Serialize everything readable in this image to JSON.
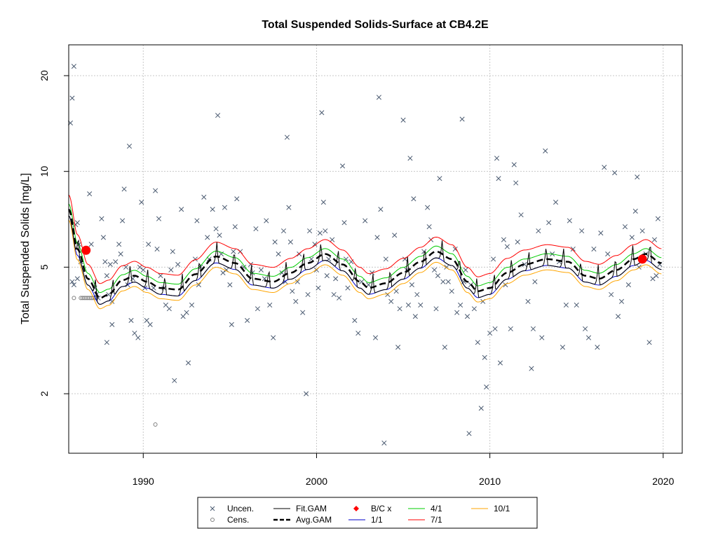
{
  "chart_data": {
    "type": "scatter",
    "title": "Total Suspended Solids-Surface at CB4.2E",
    "xlabel": "",
    "ylabel": "Total Suspended Solids [mg/L]",
    "xlim": [
      1985.7,
      2021.1
    ],
    "ylim": [
      1.3,
      25
    ],
    "y_scale": "log",
    "x_ticks": [
      1990,
      2000,
      2010,
      2020
    ],
    "y_ticks": [
      2,
      5,
      10,
      20
    ],
    "grid": true,
    "legend_position": "bottom",
    "legend": [
      {
        "label": "Uncen.",
        "kind": "x-marker",
        "color": "#4a5a70"
      },
      {
        "label": "Cens.",
        "kind": "circle-marker",
        "color": "#808080"
      },
      {
        "label": "Fit.GAM",
        "kind": "line",
        "color": "#000000"
      },
      {
        "label": "Avg.GAM",
        "kind": "dashed-line",
        "color": "#000000"
      },
      {
        "label": "B/C x",
        "kind": "diamond-marker",
        "color": "#ff0000"
      },
      {
        "label": "1/1",
        "kind": "line",
        "color": "#0000cc"
      },
      {
        "label": "4/1",
        "kind": "line",
        "color": "#00cc00"
      },
      {
        "label": "7/1",
        "kind": "line",
        "color": "#ff0000"
      },
      {
        "label": "10/1",
        "kind": "line",
        "color": "#ffa500"
      }
    ],
    "avg_gam_knots": {
      "x": [
        1985.7,
        1986.2,
        1986.8,
        1987.5,
        1988.0,
        1988.8,
        1989.5,
        1990.2,
        1991.0,
        1992.0,
        1993.0,
        1994.2,
        1995.3,
        1996.3,
        1997.5,
        1998.5,
        1999.5,
        2000.5,
        2001.5,
        2002.5,
        2003.0,
        2004.0,
        2005.0,
        2006.0,
        2006.9,
        2007.8,
        2008.7,
        2009.3,
        2010.0,
        2011.0,
        2012.0,
        2013.3,
        2014.5,
        2015.5,
        2016.3,
        2017.3,
        2018.3,
        2019.0,
        2019.9
      ],
      "y": [
        7.6,
        5.7,
        4.6,
        4.0,
        4.1,
        4.55,
        4.7,
        4.5,
        4.3,
        4.25,
        4.75,
        5.4,
        5.15,
        4.6,
        4.5,
        4.8,
        5.15,
        5.5,
        5.1,
        4.5,
        4.3,
        4.45,
        4.8,
        5.2,
        5.6,
        5.3,
        4.5,
        4.2,
        4.3,
        4.8,
        5.1,
        5.3,
        5.2,
        4.7,
        4.6,
        4.9,
        5.3,
        5.5,
        5.15
      ]
    },
    "seasonal_offsets": {
      "1/1": 0.955,
      "4/1": 1.04,
      "7/1": 1.11,
      "10/1": 0.925
    },
    "bc_points": [
      {
        "x": 1986.7,
        "y": 5.65
      },
      {
        "x": 2018.8,
        "y": 5.3
      }
    ],
    "uncensored": [
      [
        1986.0,
        21.4
      ],
      [
        1985.8,
        14.2
      ],
      [
        1985.9,
        17.0
      ],
      [
        1986.1,
        6.8
      ],
      [
        1986.2,
        6.9
      ],
      [
        1986.3,
        5.9
      ],
      [
        1986.4,
        5.2
      ],
      [
        1986.2,
        4.6
      ],
      [
        1985.9,
        4.5
      ],
      [
        1986.0,
        4.4
      ],
      [
        1986.9,
        8.5
      ],
      [
        1987.0,
        5.9
      ],
      [
        1987.2,
        4.3
      ],
      [
        1987.3,
        4.1
      ],
      [
        1987.4,
        4.0
      ],
      [
        1987.6,
        7.1
      ],
      [
        1987.7,
        6.2
      ],
      [
        1987.8,
        5.2
      ],
      [
        1987.9,
        4.7
      ],
      [
        1988.0,
        4.1
      ],
      [
        1988.1,
        5.1
      ],
      [
        1988.2,
        3.9
      ],
      [
        1987.9,
        2.9
      ],
      [
        1988.2,
        3.3
      ],
      [
        1988.4,
        5.2
      ],
      [
        1988.6,
        5.9
      ],
      [
        1988.7,
        5.5
      ],
      [
        1988.8,
        7.0
      ],
      [
        1988.9,
        8.8
      ],
      [
        1989.0,
        5.0
      ],
      [
        1989.1,
        4.4
      ],
      [
        1989.2,
        12.0
      ],
      [
        1989.3,
        3.4
      ],
      [
        1989.4,
        4.6
      ],
      [
        1989.5,
        3.1
      ],
      [
        1989.7,
        3.0
      ],
      [
        1989.8,
        5.0
      ],
      [
        1989.9,
        8.0
      ],
      [
        1990.0,
        4.9
      ],
      [
        1990.1,
        4.3
      ],
      [
        1990.2,
        3.4
      ],
      [
        1990.3,
        5.9
      ],
      [
        1990.4,
        3.3
      ],
      [
        1990.6,
        4.3
      ],
      [
        1990.7,
        8.7
      ],
      [
        1990.8,
        5.7
      ],
      [
        1990.9,
        7.1
      ],
      [
        1991.0,
        4.7
      ],
      [
        1991.2,
        4.3
      ],
      [
        1991.3,
        3.8
      ],
      [
        1991.5,
        3.7
      ],
      [
        1991.6,
        4.9
      ],
      [
        1991.7,
        5.6
      ],
      [
        1991.8,
        2.2
      ],
      [
        1992.0,
        5.1
      ],
      [
        1992.2,
        7.6
      ],
      [
        1992.3,
        3.5
      ],
      [
        1992.5,
        3.6
      ],
      [
        1992.6,
        2.5
      ],
      [
        1992.8,
        3.8
      ],
      [
        1993.0,
        5.3
      ],
      [
        1993.1,
        7.0
      ],
      [
        1993.2,
        4.4
      ],
      [
        1993.3,
        5.0
      ],
      [
        1993.5,
        8.3
      ],
      [
        1993.7,
        6.2
      ],
      [
        1993.8,
        5.3
      ],
      [
        1994.0,
        7.6
      ],
      [
        1994.2,
        6.6
      ],
      [
        1994.3,
        15.0
      ],
      [
        1994.4,
        6.3
      ],
      [
        1994.5,
        5.5
      ],
      [
        1994.6,
        4.8
      ],
      [
        1994.7,
        7.7
      ],
      [
        1994.8,
        4.9
      ],
      [
        1995.0,
        4.4
      ],
      [
        1995.1,
        3.3
      ],
      [
        1995.2,
        5.6
      ],
      [
        1995.3,
        6.7
      ],
      [
        1995.4,
        8.2
      ],
      [
        1995.6,
        5.6
      ],
      [
        1995.8,
        5.0
      ],
      [
        1996.0,
        3.4
      ],
      [
        1996.2,
        5.1
      ],
      [
        1996.3,
        4.8
      ],
      [
        1996.5,
        6.6
      ],
      [
        1996.6,
        3.7
      ],
      [
        1996.8,
        4.9
      ],
      [
        1997.0,
        4.6
      ],
      [
        1997.1,
        7.0
      ],
      [
        1997.3,
        3.8
      ],
      [
        1997.5,
        3.0
      ],
      [
        1997.6,
        6.0
      ],
      [
        1997.8,
        5.5
      ],
      [
        1998.0,
        4.8
      ],
      [
        1998.1,
        6.5
      ],
      [
        1998.2,
        4.5
      ],
      [
        1998.3,
        12.8
      ],
      [
        1998.4,
        7.7
      ],
      [
        1998.5,
        6.0
      ],
      [
        1998.6,
        4.2
      ],
      [
        1998.8,
        3.9
      ],
      [
        1998.9,
        4.5
      ],
      [
        1999.0,
        5.5
      ],
      [
        1999.2,
        3.6
      ],
      [
        1999.4,
        2.0
      ],
      [
        1999.5,
        4.1
      ],
      [
        1999.6,
        6.5
      ],
      [
        1999.7,
        5.3
      ],
      [
        1999.9,
        5.9
      ],
      [
        2000.0,
        4.9
      ],
      [
        2000.1,
        4.3
      ],
      [
        2000.2,
        6.4
      ],
      [
        2000.3,
        15.3
      ],
      [
        2000.4,
        8.0
      ],
      [
        2000.5,
        6.5
      ],
      [
        2000.6,
        4.7
      ],
      [
        2000.7,
        5.3
      ],
      [
        2000.9,
        6.1
      ],
      [
        2001.0,
        4.1
      ],
      [
        2001.1,
        4.6
      ],
      [
        2001.3,
        4.0
      ],
      [
        2001.5,
        10.4
      ],
      [
        2001.6,
        6.9
      ],
      [
        2001.7,
        5.3
      ],
      [
        2001.8,
        4.3
      ],
      [
        2002.0,
        5.2
      ],
      [
        2002.2,
        3.4
      ],
      [
        2002.4,
        3.1
      ],
      [
        2002.6,
        4.5
      ],
      [
        2002.8,
        7.0
      ],
      [
        2003.0,
        4.4
      ],
      [
        2003.2,
        4.8
      ],
      [
        2003.4,
        3.0
      ],
      [
        2003.5,
        6.2
      ],
      [
        2003.6,
        17.1
      ],
      [
        2003.7,
        7.6
      ],
      [
        2003.9,
        1.4
      ],
      [
        2004.0,
        5.3
      ],
      [
        2004.1,
        4.1
      ],
      [
        2004.3,
        3.9
      ],
      [
        2004.5,
        6.3
      ],
      [
        2004.6,
        4.2
      ],
      [
        2004.7,
        2.8
      ],
      [
        2004.8,
        3.7
      ],
      [
        2005.0,
        14.5
      ],
      [
        2005.1,
        5.3
      ],
      [
        2005.2,
        4.9
      ],
      [
        2005.3,
        3.8
      ],
      [
        2005.4,
        11.0
      ],
      [
        2005.5,
        4.4
      ],
      [
        2005.6,
        8.2
      ],
      [
        2005.7,
        3.5
      ],
      [
        2005.8,
        4.1
      ],
      [
        2006.0,
        3.8
      ],
      [
        2006.2,
        5.6
      ],
      [
        2006.4,
        7.7
      ],
      [
        2006.5,
        6.7
      ],
      [
        2006.6,
        6.1
      ],
      [
        2006.8,
        4.9
      ],
      [
        2006.9,
        3.7
      ],
      [
        2007.0,
        4.7
      ],
      [
        2007.1,
        9.5
      ],
      [
        2007.3,
        4.5
      ],
      [
        2007.4,
        2.8
      ],
      [
        2007.5,
        5.0
      ],
      [
        2007.6,
        4.5
      ],
      [
        2007.8,
        4.2
      ],
      [
        2008.0,
        5.7
      ],
      [
        2008.1,
        3.6
      ],
      [
        2008.3,
        3.8
      ],
      [
        2008.4,
        14.6
      ],
      [
        2008.5,
        4.5
      ],
      [
        2008.6,
        4.9
      ],
      [
        2008.7,
        3.5
      ],
      [
        2008.8,
        1.5
      ],
      [
        2008.9,
        4.4
      ],
      [
        2009.1,
        3.7
      ],
      [
        2009.3,
        2.9
      ],
      [
        2009.5,
        1.8
      ],
      [
        2009.6,
        3.9
      ],
      [
        2009.7,
        2.6
      ],
      [
        2009.8,
        2.1
      ],
      [
        2010.0,
        3.1
      ],
      [
        2010.2,
        5.3
      ],
      [
        2010.3,
        3.2
      ],
      [
        2010.4,
        11.0
      ],
      [
        2010.5,
        9.5
      ],
      [
        2010.6,
        2.5
      ],
      [
        2010.8,
        6.1
      ],
      [
        2010.9,
        4.4
      ],
      [
        2011.0,
        5.8
      ],
      [
        2011.2,
        3.2
      ],
      [
        2011.4,
        10.5
      ],
      [
        2011.5,
        9.2
      ],
      [
        2011.6,
        6.0
      ],
      [
        2011.8,
        7.3
      ],
      [
        2012.0,
        5.1
      ],
      [
        2012.2,
        3.9
      ],
      [
        2012.4,
        2.4
      ],
      [
        2012.5,
        3.2
      ],
      [
        2012.6,
        4.5
      ],
      [
        2012.8,
        6.5
      ],
      [
        2013.0,
        3.0
      ],
      [
        2013.2,
        11.6
      ],
      [
        2013.4,
        6.9
      ],
      [
        2013.6,
        5.5
      ],
      [
        2013.8,
        8.0
      ],
      [
        2014.0,
        5.2
      ],
      [
        2014.2,
        2.8
      ],
      [
        2014.4,
        3.8
      ],
      [
        2014.6,
        7.0
      ],
      [
        2014.8,
        5.7
      ],
      [
        2015.0,
        3.8
      ],
      [
        2015.3,
        6.5
      ],
      [
        2015.5,
        3.2
      ],
      [
        2015.7,
        3.0
      ],
      [
        2016.0,
        5.7
      ],
      [
        2016.2,
        2.8
      ],
      [
        2016.4,
        6.4
      ],
      [
        2016.6,
        10.3
      ],
      [
        2016.8,
        5.5
      ],
      [
        2017.0,
        4.1
      ],
      [
        2017.2,
        9.9
      ],
      [
        2017.4,
        3.5
      ],
      [
        2017.6,
        3.9
      ],
      [
        2017.8,
        6.7
      ],
      [
        2018.0,
        4.4
      ],
      [
        2018.2,
        6.2
      ],
      [
        2018.4,
        7.5
      ],
      [
        2018.5,
        9.6
      ],
      [
        2018.6,
        5.0
      ],
      [
        2018.8,
        6.5
      ],
      [
        2019.0,
        5.5
      ],
      [
        2019.2,
        2.9
      ],
      [
        2019.4,
        4.6
      ],
      [
        2019.5,
        6.1
      ],
      [
        2019.6,
        4.7
      ],
      [
        2019.7,
        7.1
      ],
      [
        2019.8,
        5.1
      ]
    ],
    "censored": [
      [
        1986.0,
        4.0
      ],
      [
        1986.4,
        4.0
      ],
      [
        1986.5,
        4.0
      ],
      [
        1986.6,
        4.0
      ],
      [
        1986.7,
        4.0
      ],
      [
        1986.8,
        4.0
      ],
      [
        1986.9,
        4.0
      ],
      [
        1987.0,
        4.0
      ],
      [
        1987.1,
        4.0
      ],
      [
        1987.2,
        4.0
      ],
      [
        1987.3,
        4.0
      ],
      [
        1990.7,
        1.6
      ]
    ]
  }
}
